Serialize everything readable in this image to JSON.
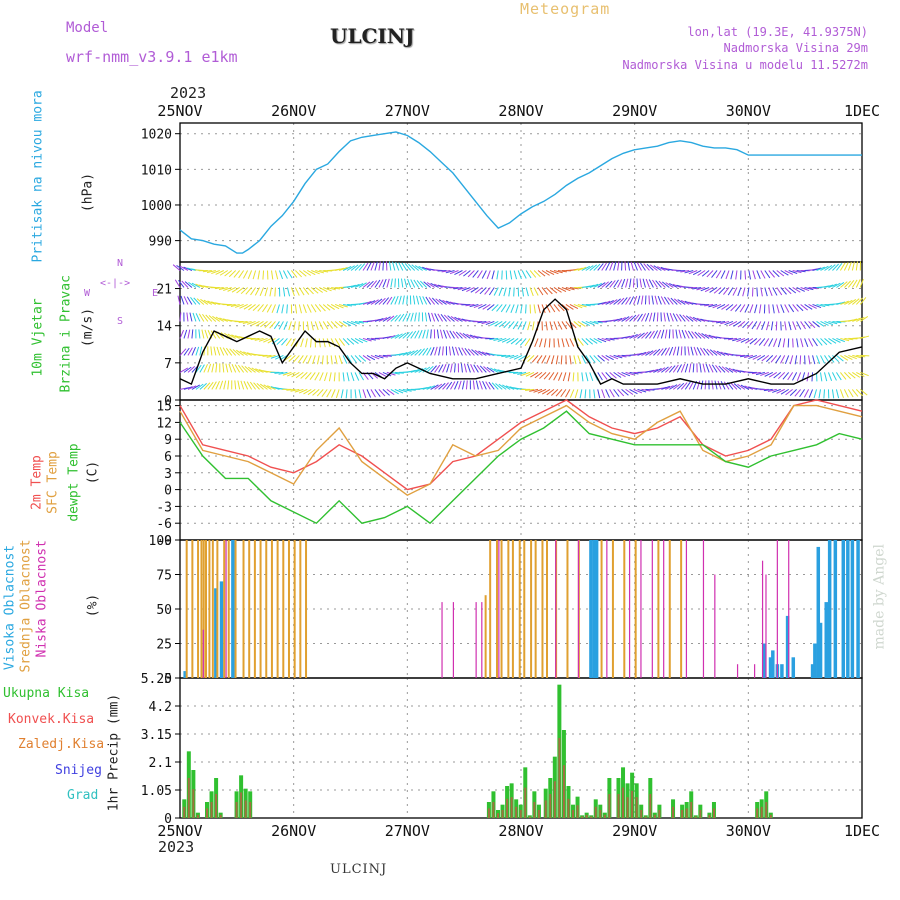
{
  "header": {
    "model_label": "Model",
    "model_name": "wrf-nmm_v3.9.1  e1km",
    "station": "ULCINJ",
    "meteogram": "Meteogram",
    "lonlat": "lon,lat (19.3E, 41.9375N)",
    "elevation": "Nadmorska Visina 29m",
    "model_elevation": "Nadmorska Visina u modelu 11.5272m",
    "year_top": "2023",
    "year_bottom": "2023"
  },
  "footer": {
    "station": "ULCINJ",
    "maker": "made by Angel"
  },
  "colors": {
    "pressure": "#2aa8e0",
    "temp2m": "#f05050",
    "sfc": "#e0a040",
    "dewpt": "#30c030",
    "high": "#2aa0e0",
    "mid": "#e0a030",
    "low": "#d030b0",
    "precip_total": "#30c030",
    "precip_conv": "#e04040",
    "precip_strat": "#e08030",
    "snow": "#4040e0",
    "grad": "#30c0c0"
  },
  "panels": {
    "pressure": {
      "ylabel_name": "Pritisak na nivou mora",
      "unit": "(hPa)"
    },
    "wind": {
      "ylabel_name1": "10m Vjetar",
      "ylabel_name2": "Brzina i Pravac",
      "unit": "(m/s)",
      "compass": {
        "n": "N",
        "s": "S",
        "e": "E",
        "w": "W"
      }
    },
    "temp": {
      "l1": "2m Temp",
      "l2": "SFC Temp",
      "l3": "dewpt Temp",
      "unit": "(C)"
    },
    "cloud": {
      "l1": "Visoka Oblacnost",
      "l2": "Srednja Oblacnost",
      "l3": "Niska Oblacnost",
      "unit": "(%)"
    },
    "precip": {
      "l1": "Ukupna Kisa",
      "l2": "Konvek.Kisa",
      "l3": "Zaledj.Kisa",
      "l4": "Snijeg",
      "l5": "Grad",
      "unit": "1hr Precip (mm)"
    }
  },
  "chart_data": [
    {
      "type": "line",
      "name": "pressure",
      "x_ticks": [
        "25NOV",
        "26NOV",
        "27NOV",
        "28NOV",
        "29NOV",
        "30NOV",
        "1DEC"
      ],
      "x_range_days": [
        0,
        6
      ],
      "ylim": [
        984,
        1023
      ],
      "y_ticks": [
        990,
        1000,
        1010,
        1020
      ],
      "grid": true,
      "series": [
        {
          "x": [
            0,
            0.1,
            0.2,
            0.3,
            0.4,
            0.5,
            0.55,
            0.6,
            0.7,
            0.8,
            0.9,
            1.0,
            1.1,
            1.2,
            1.3,
            1.4,
            1.5,
            1.6,
            1.7,
            1.8,
            1.9,
            2.0,
            2.1,
            2.2,
            2.3,
            2.4,
            2.5,
            2.6,
            2.7,
            2.8,
            2.9,
            3.0,
            3.1,
            3.2,
            3.3,
            3.4,
            3.5,
            3.6,
            3.7,
            3.8,
            3.9,
            4.0,
            4.1,
            4.2,
            4.3,
            4.4,
            4.5,
            4.6,
            4.7,
            4.8,
            4.9,
            5.0,
            5.1,
            5.2,
            5.3,
            5.4,
            5.5,
            5.6,
            5.7,
            5.8,
            5.9,
            6.0
          ],
          "y": [
            993,
            990.5,
            990,
            989,
            988.5,
            986.5,
            986.5,
            987.5,
            990,
            994,
            997,
            1001,
            1006,
            1010,
            1011.5,
            1015,
            1018,
            1019,
            1019.5,
            1020,
            1020.5,
            1019.5,
            1017.5,
            1015,
            1012,
            1009,
            1005,
            1001,
            997,
            993.5,
            995,
            997.5,
            999.5,
            1001,
            1003,
            1005.5,
            1007.5,
            1009,
            1011,
            1013,
            1014.5,
            1015.5,
            1016,
            1016.5,
            1017.5,
            1018,
            1017.5,
            1016.5,
            1016,
            1016,
            1015.5,
            1014,
            1014,
            1014,
            1014,
            1014,
            1014,
            1014,
            1014,
            1014,
            1014,
            1014
          ]
        }
      ]
    },
    {
      "type": "line",
      "name": "wind",
      "ylim": [
        0,
        26
      ],
      "y_ticks": [
        0,
        7,
        14,
        21
      ],
      "series": [
        {
          "name": "speed",
          "x": [
            0,
            0.1,
            0.2,
            0.3,
            0.4,
            0.5,
            0.6,
            0.7,
            0.8,
            0.9,
            1.0,
            1.1,
            1.2,
            1.3,
            1.4,
            1.5,
            1.6,
            1.7,
            1.8,
            1.9,
            2.0,
            2.2,
            2.4,
            2.6,
            2.8,
            3.0,
            3.1,
            3.2,
            3.3,
            3.4,
            3.5,
            3.6,
            3.7,
            3.8,
            3.9,
            4.0,
            4.2,
            4.4,
            4.6,
            4.8,
            5.0,
            5.2,
            5.4,
            5.6,
            5.8,
            6.0
          ],
          "y": [
            4,
            3,
            9,
            13,
            12,
            11,
            12,
            13,
            12,
            7,
            10,
            13,
            11,
            11,
            10,
            7,
            5,
            5,
            4,
            6,
            7,
            5,
            4,
            4,
            5,
            6,
            11,
            17,
            19,
            17,
            10,
            7,
            3,
            4,
            3,
            3,
            3,
            4,
            3,
            3,
            4,
            3,
            3,
            5,
            9,
            10
          ]
        }
      ]
    },
    {
      "type": "line",
      "name": "temperature",
      "ylim": [
        -9,
        16
      ],
      "y_ticks": [
        -9,
        -6,
        -3,
        0,
        3,
        6,
        9,
        12,
        15
      ],
      "series": [
        {
          "name": "2m",
          "x": [
            0,
            0.2,
            0.4,
            0.6,
            0.8,
            1.0,
            1.2,
            1.4,
            1.6,
            1.8,
            2.0,
            2.2,
            2.4,
            2.6,
            2.8,
            3.0,
            3.2,
            3.4,
            3.6,
            3.8,
            4.0,
            4.2,
            4.4,
            4.6,
            4.8,
            5.0,
            5.2,
            5.4,
            5.6,
            5.8,
            6.0
          ],
          "y": [
            15,
            8,
            7,
            6,
            4,
            3,
            5,
            8,
            6,
            3,
            0,
            1,
            5,
            6,
            9,
            12,
            14,
            16,
            13,
            11,
            10,
            11,
            13,
            8,
            6,
            7,
            9,
            15,
            16,
            15,
            14
          ]
        },
        {
          "name": "sfc",
          "x": [
            0,
            0.2,
            0.4,
            0.6,
            0.8,
            1.0,
            1.2,
            1.4,
            1.6,
            1.8,
            2.0,
            2.2,
            2.4,
            2.6,
            2.8,
            3.0,
            3.2,
            3.4,
            3.6,
            3.8,
            4.0,
            4.2,
            4.4,
            4.6,
            4.8,
            5.0,
            5.2,
            5.4,
            5.6,
            5.8,
            6.0
          ],
          "y": [
            14,
            7,
            6,
            5,
            3,
            1,
            7,
            11,
            5,
            2,
            -1,
            1,
            8,
            6,
            7,
            11,
            13,
            15,
            12,
            10,
            9,
            12,
            14,
            7,
            5,
            6,
            8,
            15,
            15,
            14,
            13
          ]
        },
        {
          "name": "dewpt",
          "x": [
            0,
            0.2,
            0.4,
            0.6,
            0.8,
            1.0,
            1.2,
            1.4,
            1.6,
            1.8,
            2.0,
            2.2,
            2.4,
            2.6,
            2.8,
            3.0,
            3.2,
            3.4,
            3.6,
            3.8,
            4.0,
            4.2,
            4.4,
            4.6,
            4.8,
            5.0,
            5.2,
            5.4,
            5.6,
            5.8,
            6.0
          ],
          "y": [
            12,
            6,
            2,
            2,
            -2,
            -4,
            -6,
            -2,
            -6,
            -5,
            -3,
            -6,
            -2,
            2,
            6,
            9,
            11,
            14,
            10,
            9,
            8,
            8,
            8,
            8,
            5,
            4,
            6,
            7,
            8,
            10,
            9
          ]
        }
      ]
    },
    {
      "type": "bar",
      "name": "cloud",
      "ylim": [
        0,
        100
      ],
      "y_ticks": [
        0,
        25,
        50,
        75,
        100
      ],
      "series": [
        {
          "name": "high",
          "x": [
            0.03,
            0.3,
            0.35,
            0.45,
            3.6,
            3.63,
            3.65,
            5.12,
            5.18,
            5.2,
            5.24,
            5.28,
            5.33,
            5.38,
            5.55,
            5.57,
            5.6,
            5.62,
            5.67,
            5.7,
            5.75,
            5.82,
            5.86,
            5.9,
            5.95
          ],
          "y": [
            5,
            65,
            70,
            100,
            100,
            100,
            100,
            25,
            15,
            20,
            10,
            10,
            45,
            15,
            10,
            25,
            95,
            40,
            55,
            100,
            100,
            100,
            100,
            100,
            100
          ]
        },
        {
          "name": "mid",
          "x": [
            0.05,
            0.1,
            0.15,
            0.18,
            0.2,
            0.22,
            0.25,
            0.28,
            0.32,
            0.38,
            0.42,
            0.48,
            0.55,
            0.6,
            0.65,
            0.7,
            0.75,
            0.8,
            0.85,
            0.9,
            0.95,
            1.0,
            1.05,
            1.1,
            2.68,
            2.72,
            2.78,
            2.82,
            2.88,
            2.92,
            2.98,
            3.02,
            3.08,
            3.12,
            3.18,
            3.22,
            3.3,
            3.4,
            3.5,
            3.7,
            3.8,
            3.9,
            4.0,
            4.2,
            4.3,
            4.4
          ],
          "y": [
            100,
            100,
            100,
            100,
            100,
            100,
            100,
            100,
            100,
            100,
            100,
            100,
            100,
            100,
            100,
            100,
            100,
            100,
            100,
            100,
            100,
            100,
            100,
            100,
            60,
            100,
            100,
            100,
            100,
            100,
            100,
            100,
            100,
            100,
            100,
            100,
            100,
            100,
            100,
            100,
            100,
            100,
            100,
            100,
            100,
            100
          ]
        },
        {
          "name": "low",
          "x": [
            0.2,
            0.4,
            2.3,
            2.4,
            2.6,
            2.65,
            2.8,
            3.3,
            3.5,
            3.75,
            3.95,
            4.05,
            4.15,
            4.25,
            4.45,
            4.6,
            4.7,
            4.9,
            5.05,
            5.12,
            5.15,
            5.25,
            5.35
          ],
          "y": [
            35,
            100,
            55,
            55,
            55,
            55,
            100,
            100,
            100,
            100,
            100,
            100,
            100,
            100,
            100,
            100,
            75,
            10,
            10,
            85,
            75,
            100,
            100
          ]
        }
      ]
    },
    {
      "type": "bar",
      "name": "precip",
      "ylim": [
        0,
        5.25
      ],
      "y_ticks": [
        0,
        1.05,
        2.1,
        3.15,
        4.2,
        5.25
      ],
      "series": [
        {
          "name": "total",
          "x": [
            0.02,
            0.06,
            0.1,
            0.14,
            0.22,
            0.26,
            0.3,
            0.34,
            0.48,
            0.52,
            0.56,
            0.6,
            2.7,
            2.74,
            2.78,
            2.82,
            2.86,
            2.9,
            2.94,
            2.98,
            3.02,
            3.06,
            3.1,
            3.14,
            3.2,
            3.24,
            3.28,
            3.32,
            3.36,
            3.4,
            3.44,
            3.48,
            3.52,
            3.56,
            3.6,
            3.64,
            3.68,
            3.72,
            3.76,
            3.84,
            3.88,
            3.92,
            3.96,
            4.0,
            4.04,
            4.08,
            4.12,
            4.16,
            4.2,
            4.32,
            4.4,
            4.44,
            4.48,
            4.52,
            4.56,
            4.64,
            4.68,
            5.06,
            5.1,
            5.14,
            5.18
          ],
          "y": [
            0.7,
            2.5,
            1.8,
            0.2,
            0.6,
            1.0,
            1.5,
            0.2,
            1.0,
            1.6,
            1.1,
            1.0,
            0.6,
            1.0,
            0.3,
            0.5,
            1.2,
            1.3,
            0.7,
            0.5,
            1.9,
            0.1,
            1.0,
            0.5,
            1.1,
            1.5,
            2.3,
            5.0,
            3.3,
            1.2,
            0.5,
            0.8,
            0.1,
            0.2,
            0.1,
            0.7,
            0.5,
            0.2,
            1.5,
            1.5,
            1.9,
            1.3,
            1.7,
            1.3,
            0.5,
            0.1,
            1.5,
            0.2,
            0.5,
            0.7,
            0.5,
            0.6,
            1.0,
            0.1,
            0.5,
            0.2,
            0.6,
            0.6,
            0.7,
            1.0,
            0.2
          ]
        }
      ]
    }
  ]
}
